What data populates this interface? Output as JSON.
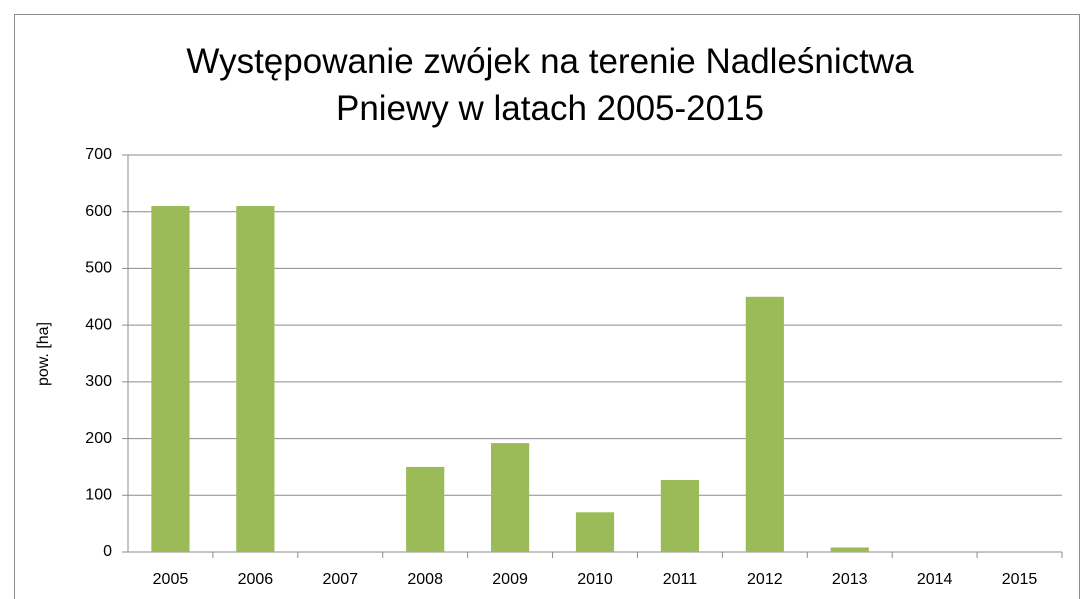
{
  "chart_data": {
    "type": "bar",
    "title": "Występowanie zwójek na terenie Nadleśnictwa Pniewy w latach 2005-2015",
    "y_label": "pow. [ha]",
    "categories": [
      "2005",
      "2006",
      "2007",
      "2008",
      "2009",
      "2010",
      "2011",
      "2012",
      "2013",
      "2014",
      "2015"
    ],
    "values": [
      610,
      610,
      0,
      150,
      192,
      70,
      127,
      450,
      8,
      0,
      0
    ],
    "color": "#9bbb59",
    "ylim": [
      0,
      700
    ],
    "yticks": [
      0,
      100,
      200,
      300,
      400,
      500,
      600,
      700
    ],
    "grid": true
  }
}
